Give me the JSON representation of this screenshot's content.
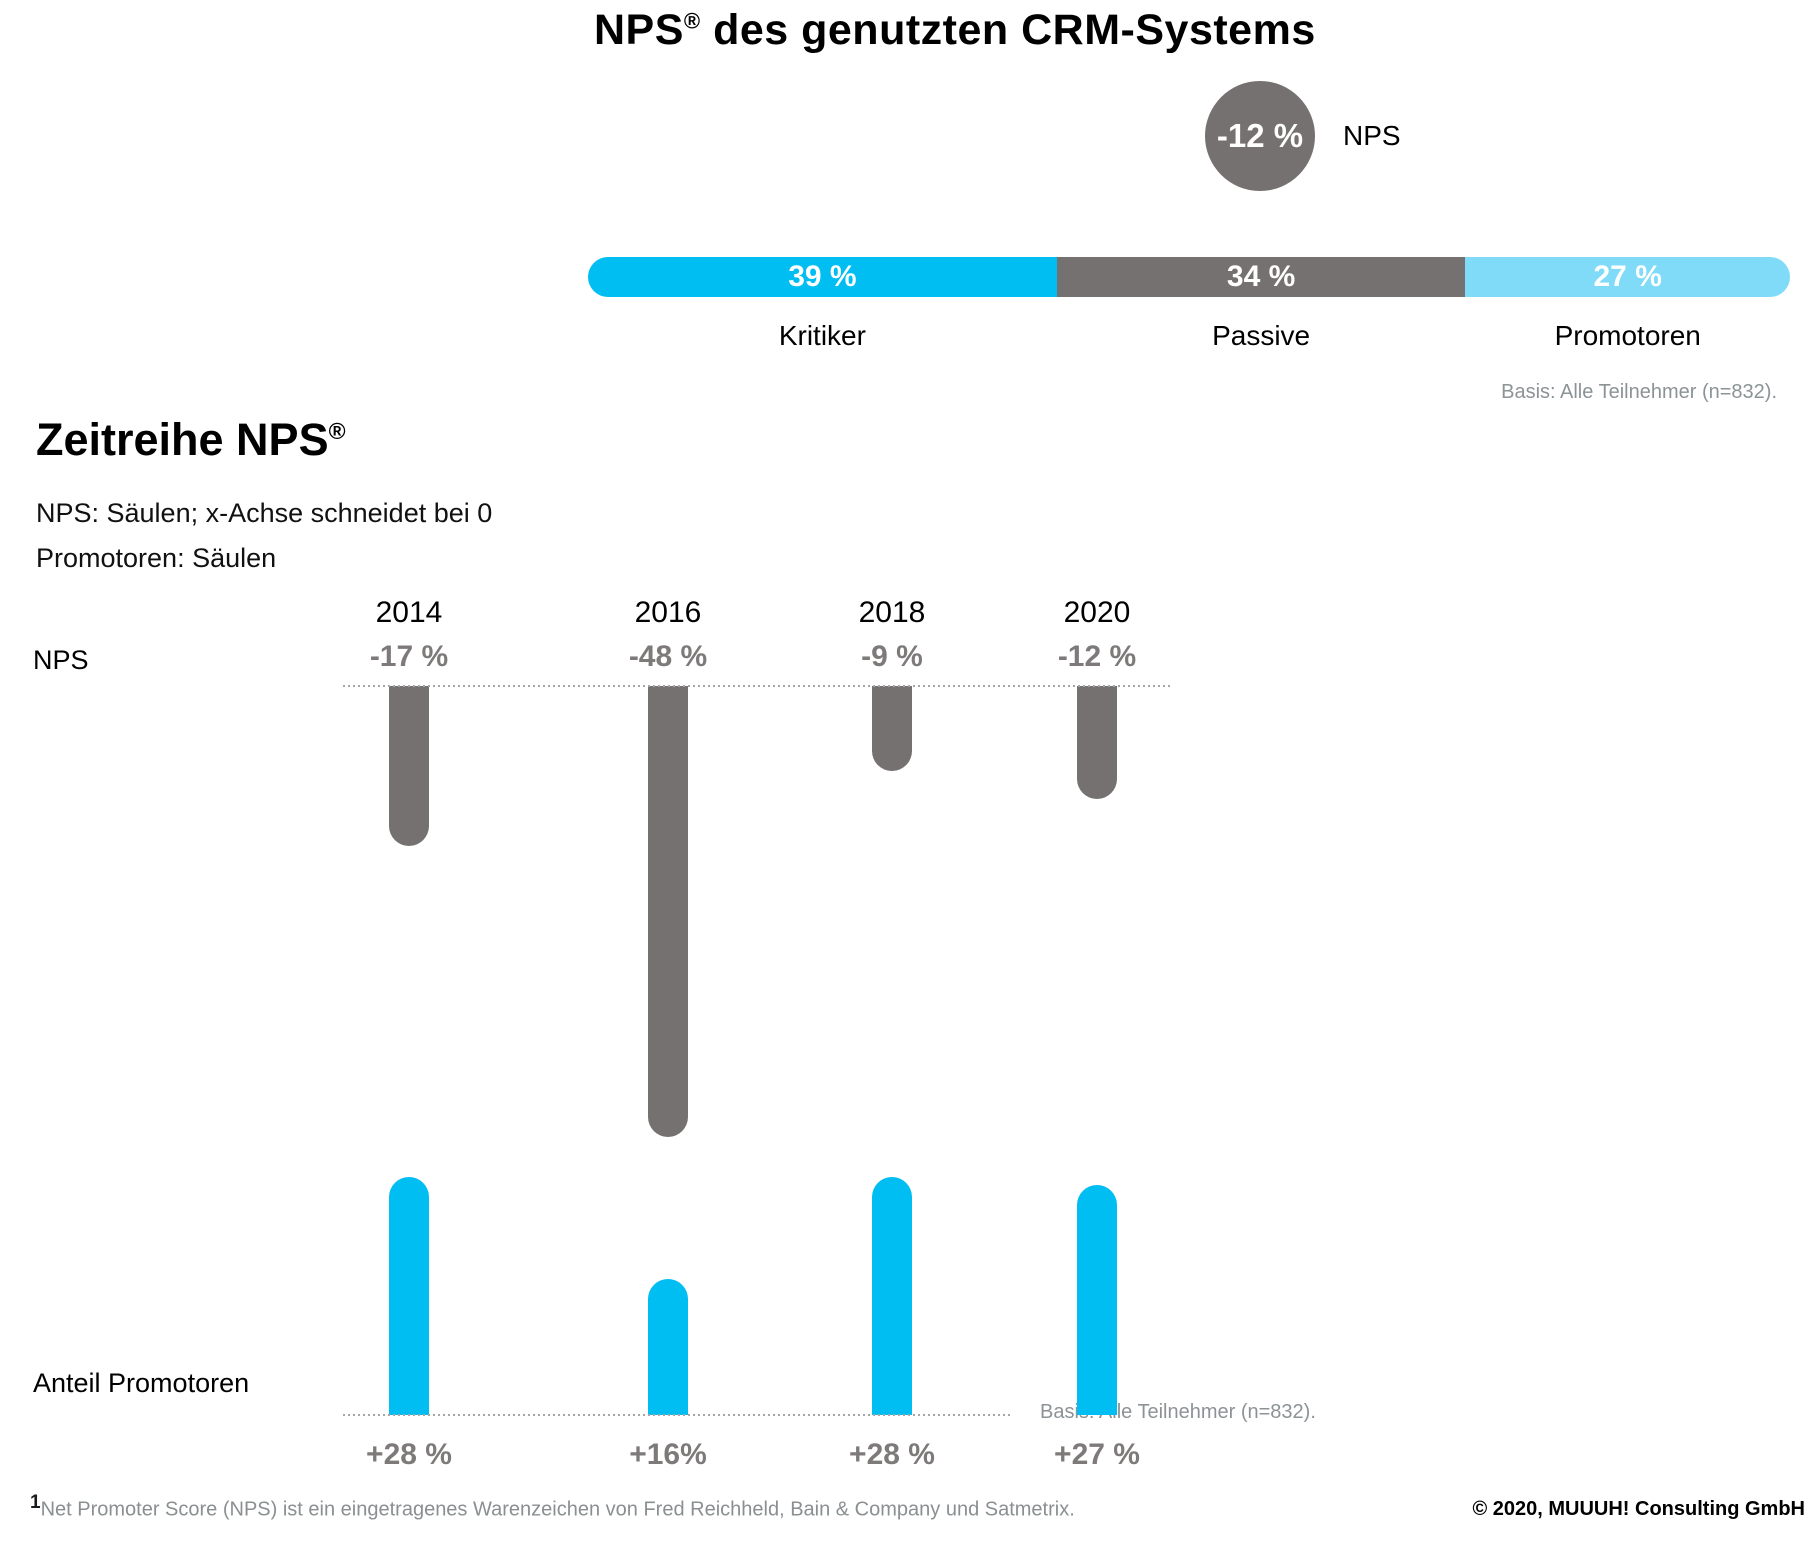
{
  "title": {
    "prefix": "NPS",
    "reg": "®",
    "suffix": " des genutzten CRM-Systems"
  },
  "summary": {
    "score": "-12 %",
    "score_label": "NPS",
    "basis_note": "Basis: Alle Teilnehmer (n=832).",
    "segments": [
      {
        "label": "Kritiker",
        "value_label": "39 %",
        "pct": 39,
        "color": "#00BDF2"
      },
      {
        "label": "Passive",
        "value_label": "34 %",
        "pct": 34,
        "color": "#767171"
      },
      {
        "label": "Promotoren",
        "value_label": "27 %",
        "pct": 27,
        "color": "#7FDBF8"
      }
    ]
  },
  "timeline": {
    "heading": {
      "prefix": "Zeitreihe NPS",
      "reg": "®"
    },
    "subtitle1": "NPS: Säulen; x-Achse schneidet bei 0",
    "subtitle2": "Promotoren: Säulen",
    "nps_axis_label": "NPS",
    "promoters_axis_label": "Anteil Promotoren",
    "basis_note": "Basis: Alle Teilnehmer (n=832).",
    "columns": [
      {
        "year": "2014",
        "nps": -17,
        "nps_label": "-17 %",
        "promoters": 28,
        "promoters_label": "+28 %"
      },
      {
        "year": "2016",
        "nps": -48,
        "nps_label": "-48 %",
        "promoters": 16,
        "promoters_label": "+16%"
      },
      {
        "year": "2018",
        "nps": -9,
        "nps_label": "-9 %",
        "promoters": 28,
        "promoters_label": "+28 %"
      },
      {
        "year": "2020",
        "nps": -12,
        "nps_label": "-12 %",
        "promoters": 27,
        "promoters_label": "+27 %"
      }
    ]
  },
  "chart_data": [
    {
      "type": "bar",
      "title": "NPS® des genutzten CRM-Systems",
      "subtype": "horizontal-stacked-100pct",
      "categories": [
        "Kritiker",
        "Passive",
        "Promotoren"
      ],
      "values": [
        39,
        34,
        27
      ],
      "unit": "%",
      "nps_score": -12,
      "basis": "Alle Teilnehmer (n=832)",
      "legend_position": "below-segments",
      "colors": [
        "#00BDF2",
        "#767171",
        "#7FDBF8"
      ]
    },
    {
      "type": "bar",
      "title": "Zeitreihe NPS®",
      "subtype": "columns-diverging-from-zero",
      "categories": [
        "2014",
        "2016",
        "2018",
        "2020"
      ],
      "series": [
        {
          "name": "NPS",
          "values": [
            -17,
            -48,
            -9,
            -12
          ],
          "color": "#767171",
          "direction": "down"
        },
        {
          "name": "Anteil Promotoren",
          "values": [
            28,
            16,
            28,
            27
          ],
          "color": "#00BDF2",
          "direction": "up"
        }
      ],
      "unit": "%",
      "annotations": [
        "NPS: Säulen; x-Achse schneidet bei 0",
        "Promotoren: Säulen"
      ],
      "basis": "Alle Teilnehmer (n=832)",
      "grid": false
    }
  ],
  "colors": {
    "cyan": "#00BDF2",
    "light_cyan": "#7FDBF8",
    "gray": "#767171"
  },
  "footer": {
    "footnote_marker": "1",
    "footnote": "Net Promoter Score (NPS) ist ein eingetragenes Warenzeichen von Fred Reichheld, Bain & Company und Satmetrix.",
    "copyright": "© 2020, MUUUH! Consulting GmbH"
  }
}
